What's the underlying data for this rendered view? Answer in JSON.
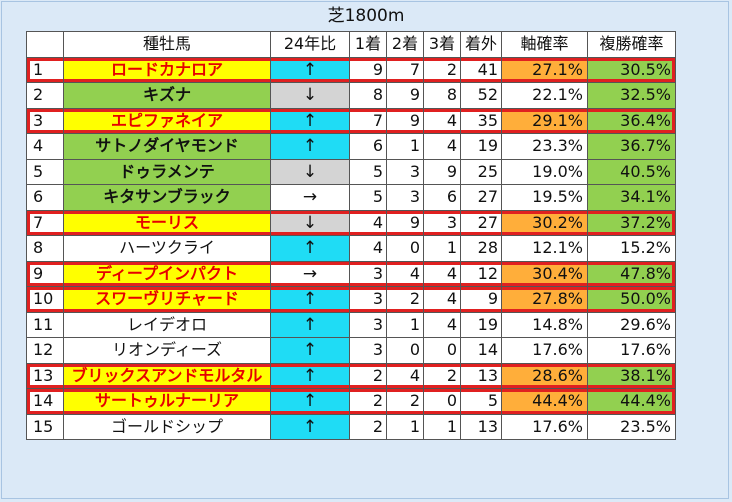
{
  "title": "芝1800m",
  "headers": {
    "rank": "",
    "sire": "種牡馬",
    "trend": "24年比",
    "first": "1着",
    "second": "2着",
    "third": "3着",
    "out": "着外",
    "axis_rate": "軸確率",
    "place_rate": "複勝確率"
  },
  "colors": {
    "highlight_border": "#e02020",
    "yellow": "#ffff00",
    "red_text": "#e60000",
    "green": "#92d050",
    "cyan": "#1fdcf5",
    "gray": "#d4d4d4",
    "orange": "#ffae3a"
  },
  "rows": [
    {
      "rank": "1",
      "sire": "ロードカナロア",
      "style": "yellow",
      "trend": "↑",
      "trend_bg": "cyan",
      "first": "9",
      "second": "7",
      "third": "2",
      "out": "41",
      "axis_rate": "27.1%",
      "axis_bg": "orange",
      "place_rate": "30.5%",
      "place_bg": "green",
      "highlight": true
    },
    {
      "rank": "2",
      "sire": "キズナ",
      "style": "green",
      "trend": "↓",
      "trend_bg": "gray",
      "first": "8",
      "second": "9",
      "third": "8",
      "out": "52",
      "axis_rate": "22.1%",
      "axis_bg": "white",
      "place_rate": "32.5%",
      "place_bg": "green",
      "highlight": false
    },
    {
      "rank": "3",
      "sire": "エピファネイア",
      "style": "yellow",
      "trend": "↑",
      "trend_bg": "cyan",
      "first": "7",
      "second": "9",
      "third": "4",
      "out": "35",
      "axis_rate": "29.1%",
      "axis_bg": "orange",
      "place_rate": "36.4%",
      "place_bg": "green",
      "highlight": true
    },
    {
      "rank": "4",
      "sire": "サトノダイヤモンド",
      "style": "green",
      "trend": "↑",
      "trend_bg": "cyan",
      "first": "6",
      "second": "1",
      "third": "4",
      "out": "19",
      "axis_rate": "23.3%",
      "axis_bg": "white",
      "place_rate": "36.7%",
      "place_bg": "green",
      "highlight": false
    },
    {
      "rank": "5",
      "sire": "ドゥラメンテ",
      "style": "green",
      "trend": "↓",
      "trend_bg": "gray",
      "first": "5",
      "second": "3",
      "third": "9",
      "out": "25",
      "axis_rate": "19.0%",
      "axis_bg": "white",
      "place_rate": "40.5%",
      "place_bg": "green",
      "highlight": false
    },
    {
      "rank": "6",
      "sire": "キタサンブラック",
      "style": "green",
      "trend": "→",
      "trend_bg": "white",
      "first": "5",
      "second": "3",
      "third": "6",
      "out": "27",
      "axis_rate": "19.5%",
      "axis_bg": "white",
      "place_rate": "34.1%",
      "place_bg": "green",
      "highlight": false
    },
    {
      "rank": "7",
      "sire": "モーリス",
      "style": "yellow",
      "trend": "↓",
      "trend_bg": "gray",
      "first": "4",
      "second": "9",
      "third": "3",
      "out": "27",
      "axis_rate": "30.2%",
      "axis_bg": "orange",
      "place_rate": "37.2%",
      "place_bg": "green",
      "highlight": true
    },
    {
      "rank": "8",
      "sire": "ハーツクライ",
      "style": "plain",
      "trend": "↑",
      "trend_bg": "cyan",
      "first": "4",
      "second": "0",
      "third": "1",
      "out": "28",
      "axis_rate": "12.1%",
      "axis_bg": "white",
      "place_rate": "15.2%",
      "place_bg": "white",
      "highlight": false
    },
    {
      "rank": "9",
      "sire": "ディープインパクト",
      "style": "yellow",
      "trend": "→",
      "trend_bg": "white",
      "first": "3",
      "second": "4",
      "third": "4",
      "out": "12",
      "axis_rate": "30.4%",
      "axis_bg": "orange",
      "place_rate": "47.8%",
      "place_bg": "green",
      "highlight": true
    },
    {
      "rank": "10",
      "sire": "スワーヴリチャード",
      "style": "yellow",
      "trend": "↑",
      "trend_bg": "cyan",
      "first": "3",
      "second": "2",
      "third": "4",
      "out": "9",
      "axis_rate": "27.8%",
      "axis_bg": "orange",
      "place_rate": "50.0%",
      "place_bg": "green",
      "highlight": true
    },
    {
      "rank": "11",
      "sire": "レイデオロ",
      "style": "plain",
      "trend": "↑",
      "trend_bg": "cyan",
      "first": "3",
      "second": "1",
      "third": "4",
      "out": "19",
      "axis_rate": "14.8%",
      "axis_bg": "white",
      "place_rate": "29.6%",
      "place_bg": "white",
      "highlight": false
    },
    {
      "rank": "12",
      "sire": "リオンディーズ",
      "style": "plain",
      "trend": "↑",
      "trend_bg": "cyan",
      "first": "3",
      "second": "0",
      "third": "0",
      "out": "14",
      "axis_rate": "17.6%",
      "axis_bg": "white",
      "place_rate": "17.6%",
      "place_bg": "white",
      "highlight": false
    },
    {
      "rank": "13",
      "sire": "ブリックスアンドモルタル",
      "style": "yellow",
      "trend": "↑",
      "trend_bg": "cyan",
      "first": "2",
      "second": "4",
      "third": "2",
      "out": "13",
      "axis_rate": "28.6%",
      "axis_bg": "orange",
      "place_rate": "38.1%",
      "place_bg": "green",
      "highlight": true
    },
    {
      "rank": "14",
      "sire": "サートゥルナーリア",
      "style": "yellow",
      "trend": "↑",
      "trend_bg": "cyan",
      "first": "2",
      "second": "2",
      "third": "0",
      "out": "5",
      "axis_rate": "44.4%",
      "axis_bg": "orange",
      "place_rate": "44.4%",
      "place_bg": "green",
      "highlight": true
    },
    {
      "rank": "15",
      "sire": "ゴールドシップ",
      "style": "plain",
      "trend": "↑",
      "trend_bg": "cyan",
      "first": "2",
      "second": "1",
      "third": "1",
      "out": "13",
      "axis_rate": "17.6%",
      "axis_bg": "white",
      "place_rate": "23.5%",
      "place_bg": "white",
      "highlight": false
    }
  ]
}
